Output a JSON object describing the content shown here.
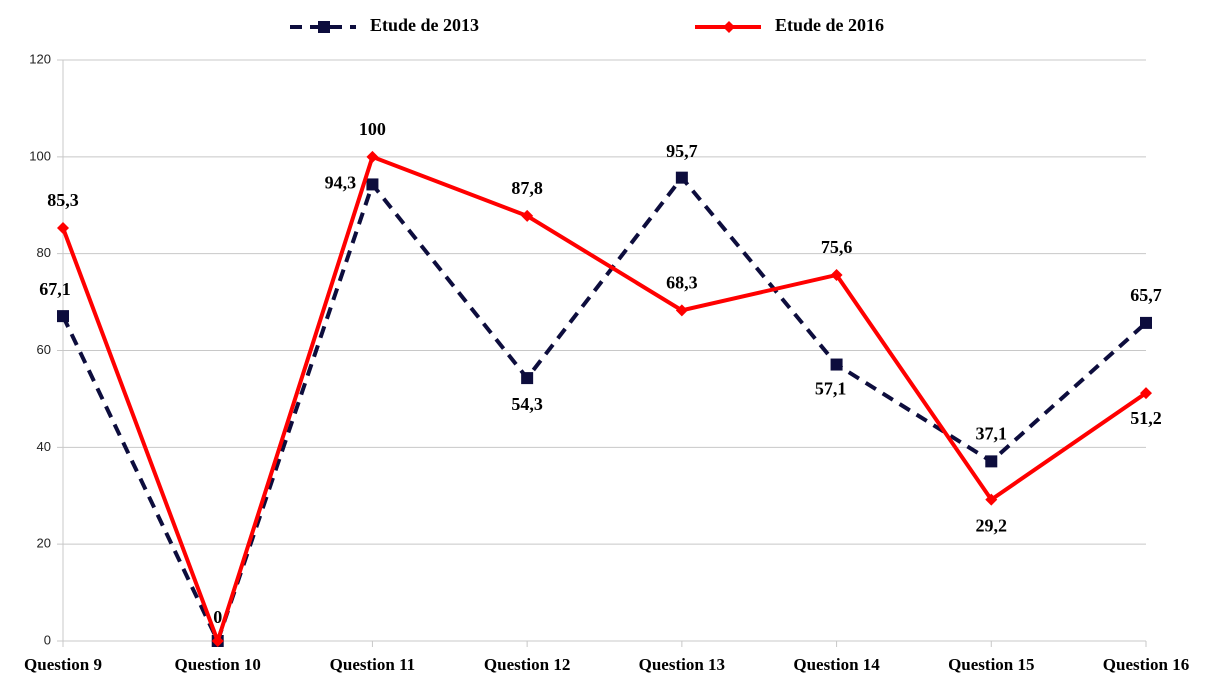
{
  "chart_data": {
    "type": "line",
    "categories": [
      "Question 9",
      "Question 10",
      "Question 11",
      "Question 12",
      "Question 13",
      "Question 14",
      "Question 15",
      "Question 16"
    ],
    "series": [
      {
        "name": "Etude de 2013",
        "color": "#0d0d3d",
        "dash": true,
        "marker": "square",
        "values": [
          67.1,
          0,
          94.3,
          54.3,
          95.7,
          57.1,
          37.1,
          65.7
        ],
        "value_labels": [
          "67,1",
          null,
          "94,3",
          "54,3",
          "95,7",
          "57,1",
          "37,1",
          "65,7"
        ]
      },
      {
        "name": "Etude de 2016",
        "color": "#ff0000",
        "dash": false,
        "marker": "diamond",
        "values": [
          85.3,
          0,
          100,
          87.8,
          68.3,
          75.6,
          29.2,
          51.2
        ],
        "value_labels": [
          "85,3",
          "0",
          "100",
          "87,8",
          "68,3",
          "75,6",
          "29,2",
          "51,2"
        ]
      }
    ],
    "ylim": [
      0,
      120
    ],
    "yticks": [
      0,
      20,
      40,
      60,
      80,
      100,
      120
    ],
    "grid": true,
    "legend": "top"
  }
}
